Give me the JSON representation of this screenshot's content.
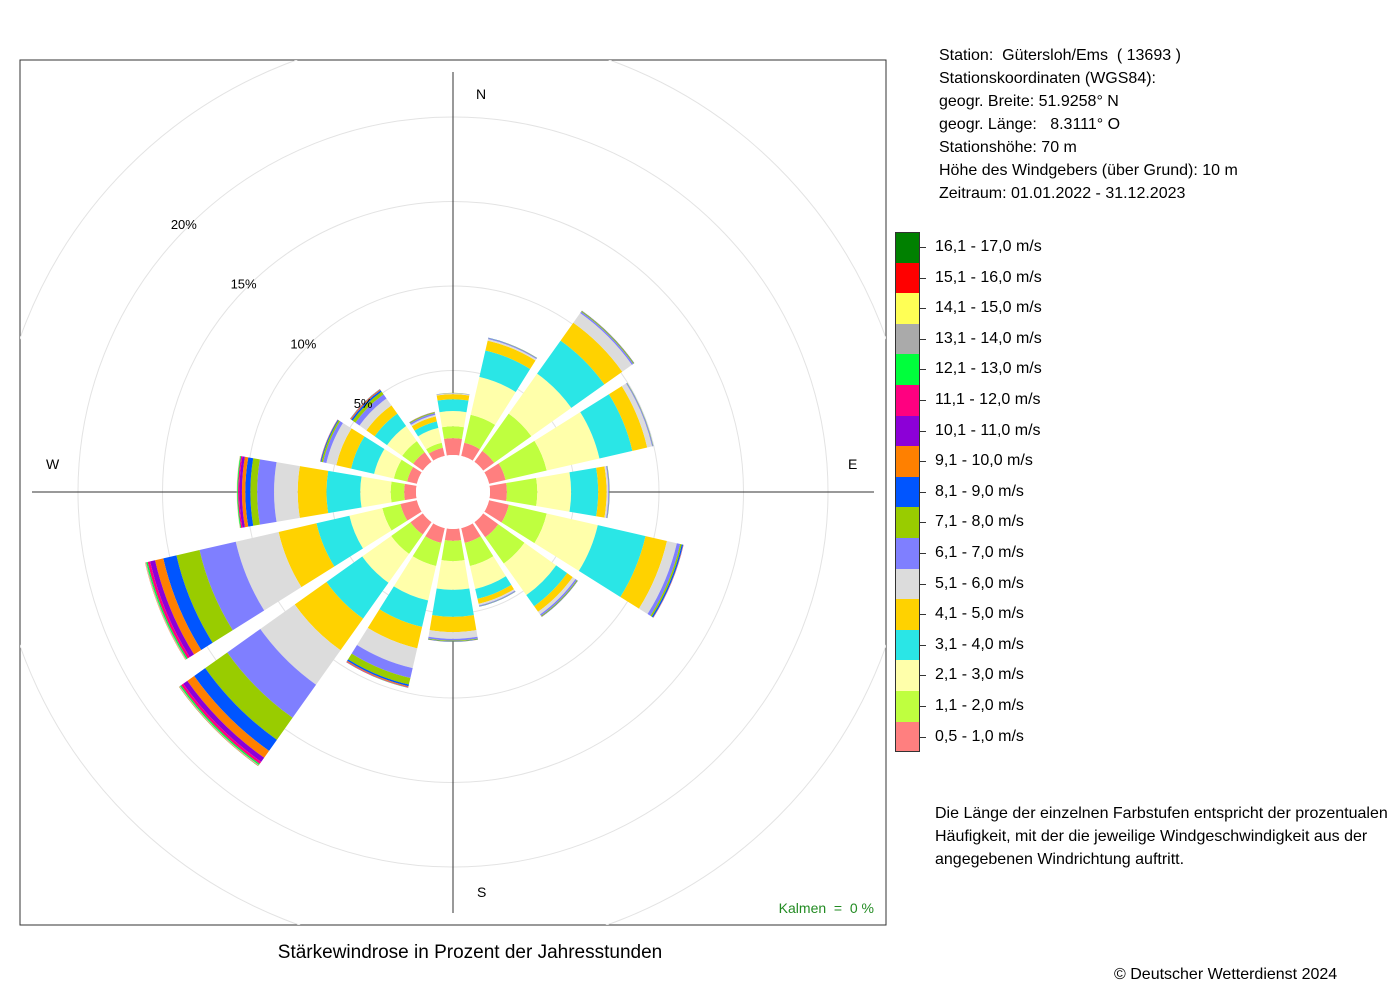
{
  "chart_data": {
    "type": "polar-stacked-bar",
    "title": "Stärkewindrose in Prozent der Jahresstunden",
    "directions": [
      "N",
      "NNE",
      "NE",
      "ENE",
      "E",
      "ESE",
      "SE",
      "SSE",
      "S",
      "SSW",
      "SW",
      "WSW",
      "W",
      "WNW",
      "NW",
      "NNW"
    ],
    "compass_labels": [
      "N",
      "E",
      "S",
      "W"
    ],
    "radial_ticks": [
      {
        "value": 5,
        "label": "5%"
      },
      {
        "value": 10,
        "label": "10%"
      },
      {
        "value": 15,
        "label": "15%"
      },
      {
        "value": 20,
        "label": "20%"
      }
    ],
    "rmax": 25,
    "calm_label": "Kalmen  =  0 %",
    "classes": [
      {
        "label": "0,5 - 1,0 m/s",
        "color": "#FF7F7F"
      },
      {
        "label": "1,1 - 2,0 m/s",
        "color": "#BFFF3F"
      },
      {
        "label": "2,1 - 3,0 m/s",
        "color": "#FFFFAA"
      },
      {
        "label": "3,1 - 4,0 m/s",
        "color": "#2AE6E6"
      },
      {
        "label": "4,1 - 5,0 m/s",
        "color": "#FFD200"
      },
      {
        "label": "5,1 - 6,0 m/s",
        "color": "#DCDCDC"
      },
      {
        "label": "6,1 - 7,0 m/s",
        "color": "#7F7FFF"
      },
      {
        "label": "7,1 - 8,0 m/s",
        "color": "#99CC00"
      },
      {
        "label": "8,1 - 9,0 m/s",
        "color": "#0055FF"
      },
      {
        "label": "9,1 - 10,0 m/s",
        "color": "#FF8000"
      },
      {
        "label": "10,1 - 11,0 m/s",
        "color": "#8C00D7"
      },
      {
        "label": "11,1 - 12,0 m/s",
        "color": "#FF0080"
      },
      {
        "label": "12,1 - 13,0 m/s",
        "color": "#00FF3C"
      },
      {
        "label": "13,1 - 14,0 m/s",
        "color": "#AAAAAA"
      },
      {
        "label": "14,1 - 15,0 m/s",
        "color": "#FFFF55"
      },
      {
        "label": "15,1 - 16,0 m/s",
        "color": "#FF0000"
      },
      {
        "label": "16,1 - 17,0 m/s",
        "color": "#008000"
      }
    ],
    "series": [
      [
        1.0,
        0.8,
        0.8,
        1.0,
        1.0,
        1.2,
        1.1,
        0.9,
        0.7,
        0.9,
        0.9,
        1.0,
        0.7,
        0.6,
        0.7,
        0.5
      ],
      [
        0.7,
        1.7,
        2.7,
        2.5,
        1.8,
        2.3,
        1.9,
        1.4,
        1.2,
        1.4,
        1.4,
        1.1,
        0.8,
        0.8,
        0.8,
        0.3
      ],
      [
        0.9,
        2.3,
        2.9,
        3.2,
        2.0,
        3.1,
        2.3,
        1.4,
        1.7,
        2.1,
        2.1,
        2.0,
        1.8,
        1.2,
        1.1,
        0.9
      ],
      [
        0.7,
        1.6,
        2.4,
        2.0,
        1.6,
        2.9,
        0.8,
        0.6,
        1.6,
        1.6,
        2.6,
        2.0,
        2.0,
        1.4,
        0.9,
        0.4
      ],
      [
        0.3,
        0.6,
        1.3,
        0.9,
        0.5,
        1.3,
        0.4,
        0.3,
        0.9,
        1.3,
        2.3,
        2.3,
        1.7,
        0.9,
        0.6,
        0.3
      ],
      [
        0.05,
        0.1,
        0.7,
        0.3,
        0.1,
        0.6,
        0.2,
        0.1,
        0.4,
        1.2,
        2.5,
        2.6,
        1.4,
        0.6,
        0.5,
        0.1
      ],
      [
        0.02,
        0.05,
        0.1,
        0.05,
        0.05,
        0.2,
        0.1,
        0.05,
        0.1,
        0.6,
        2.4,
        2.2,
        1.0,
        0.2,
        0.3,
        0.1
      ],
      [
        0.01,
        0.02,
        0.05,
        0.02,
        0.02,
        0.1,
        0.05,
        0.02,
        0.05,
        0.4,
        1.6,
        1.4,
        0.4,
        0.1,
        0.2,
        0.05
      ],
      [
        0.0,
        0.01,
        0.02,
        0.01,
        0.01,
        0.08,
        0.02,
        0.01,
        0.02,
        0.1,
        0.8,
        0.8,
        0.3,
        0.05,
        0.1,
        0.02
      ],
      [
        0.0,
        0.0,
        0.01,
        0.0,
        0.0,
        0.02,
        0.01,
        0.0,
        0.01,
        0.05,
        0.5,
        0.5,
        0.2,
        0.02,
        0.05,
        0.01
      ],
      [
        0.0,
        0.0,
        0.0,
        0.0,
        0.0,
        0.01,
        0.0,
        0.0,
        0.0,
        0.02,
        0.3,
        0.3,
        0.15,
        0.01,
        0.02,
        0.0
      ],
      [
        0.0,
        0.0,
        0.0,
        0.0,
        0.0,
        0.0,
        0.0,
        0.0,
        0.0,
        0.02,
        0.15,
        0.15,
        0.08,
        0.0,
        0.01,
        0.0
      ],
      [
        0.0,
        0.0,
        0.0,
        0.0,
        0.0,
        0.0,
        0.0,
        0.0,
        0.0,
        0.01,
        0.08,
        0.08,
        0.05,
        0.0,
        0.01,
        0.0
      ],
      [
        0.0,
        0.0,
        0.0,
        0.0,
        0.0,
        0.0,
        0.0,
        0.0,
        0.0,
        0.0,
        0.04,
        0.05,
        0.02,
        0.0,
        0.0,
        0.0
      ],
      [
        0.0,
        0.0,
        0.0,
        0.0,
        0.0,
        0.0,
        0.0,
        0.0,
        0.0,
        0.0,
        0.02,
        0.02,
        0.01,
        0.0,
        0.0,
        0.0
      ],
      [
        0.0,
        0.0,
        0.0,
        0.0,
        0.0,
        0.0,
        0.0,
        0.0,
        0.0,
        0.0,
        0.01,
        0.01,
        0.0,
        0.0,
        0.0,
        0.0
      ],
      [
        0.0,
        0.0,
        0.0,
        0.0,
        0.0,
        0.0,
        0.0,
        0.0,
        0.0,
        0.0,
        0.01,
        0.0,
        0.0,
        0.0,
        0.0,
        0.0
      ]
    ]
  },
  "station": {
    "line_station": "Station:  Gütersloh/Ems  ( 13693 )",
    "line_coords": "Stationskoordinaten (WGS84):",
    "line_lat": "geogr. Breite: 51.9258° N",
    "line_lon": "geogr. Länge:   8.3111° O",
    "line_height": "Stationshöhe: 70 m",
    "line_sensor": "Höhe des Windgebers (über Grund): 10 m",
    "line_period": "Zeitraum: 01.01.2022 - 31.12.2023"
  },
  "note": "Die Länge der einzelnen Farbstufen entspricht der prozentualen Häufigkeit, mit der die jeweilige Windgeschwindigkeit aus der angegebenen Windrichtung auftritt.",
  "copyright": "© Deutscher Wetterdienst  2024"
}
